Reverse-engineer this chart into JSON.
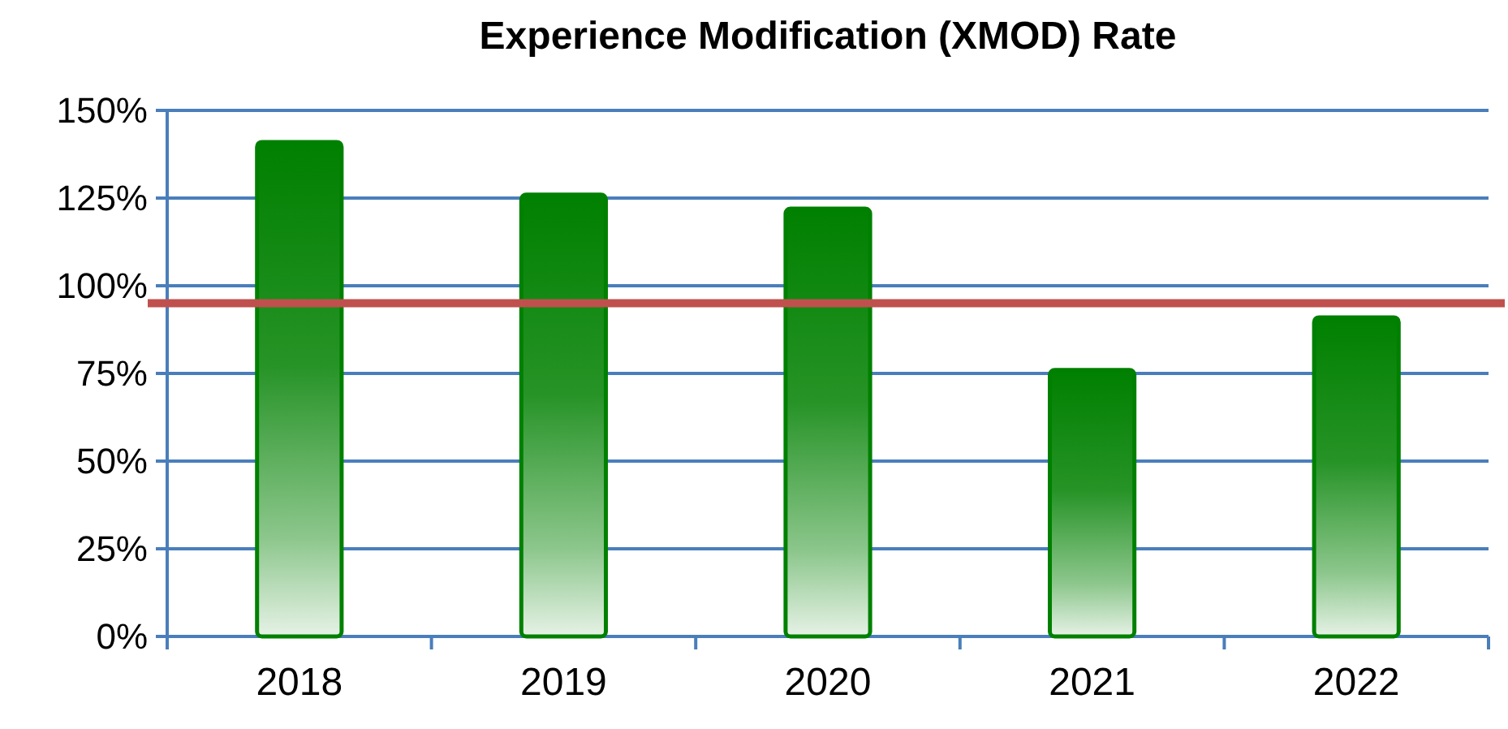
{
  "chart_data": {
    "type": "bar",
    "title": "Experience Modification (XMOD) Rate",
    "categories": [
      "2018",
      "2019",
      "2020",
      "2021",
      "2022"
    ],
    "values": [
      141,
      126,
      122,
      76,
      91
    ],
    "color": "#008000",
    "ylim": [
      0,
      150
    ],
    "yticks": [
      {
        "value": 0,
        "label": "0%"
      },
      {
        "value": 25,
        "label": "25%"
      },
      {
        "value": 50,
        "label": "50%"
      },
      {
        "value": 75,
        "label": "75%"
      },
      {
        "value": 100,
        "label": "100%"
      },
      {
        "value": 125,
        "label": "125%"
      },
      {
        "value": 150,
        "label": "150%"
      }
    ],
    "grid": "y",
    "ref_lines": [
      {
        "axis": "y",
        "value": 95,
        "color": "#c0504d"
      }
    ]
  }
}
